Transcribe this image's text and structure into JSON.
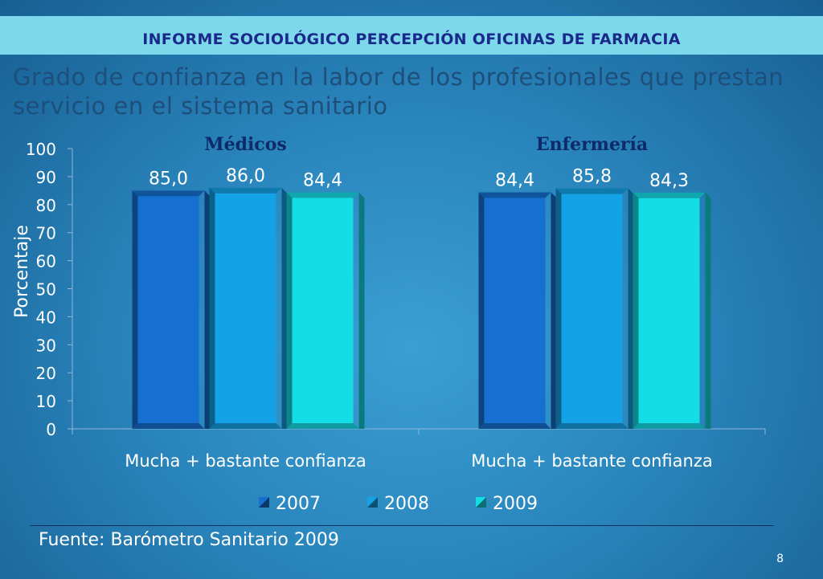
{
  "header": {
    "banner_title": "INFORME SOCIOLÓGICO PERCEPCIÓN OFICINAS DE FARMACIA",
    "subtitle": "Grado de confianza en la labor de los profesionales que prestan servicio en el sistema sanitario"
  },
  "footer": {
    "source": "Fuente: Barómetro Sanitario 2009",
    "page_number": "8"
  },
  "colors": {
    "banner_bg": "#7ed8ec",
    "banner_text": "#1a2a8a",
    "subtitle_text": "#1e4f7a",
    "series": [
      "#1670d2",
      "#14a2e6",
      "#14dde6"
    ]
  },
  "chart_data": {
    "type": "bar",
    "ylabel": "Porcentaje",
    "ylim": [
      0,
      100
    ],
    "yticks": [
      "0",
      "10",
      "20",
      "30",
      "40",
      "50",
      "60",
      "70",
      "80",
      "90",
      "100"
    ],
    "grid": false,
    "legend_position": "bottom",
    "groups": [
      {
        "name": "Médicos",
        "category": "Mucha + bastante confianza",
        "values": [
          85.0,
          86.0,
          84.4
        ],
        "labels": [
          "85,0",
          "86,0",
          "84,4"
        ]
      },
      {
        "name": "Enfermería",
        "category": "Mucha + bastante confianza",
        "values": [
          84.4,
          85.8,
          84.3
        ],
        "labels": [
          "84,4",
          "85,8",
          "84,3"
        ]
      }
    ],
    "series": [
      {
        "name": "2007"
      },
      {
        "name": "2008"
      },
      {
        "name": "2009"
      }
    ]
  }
}
